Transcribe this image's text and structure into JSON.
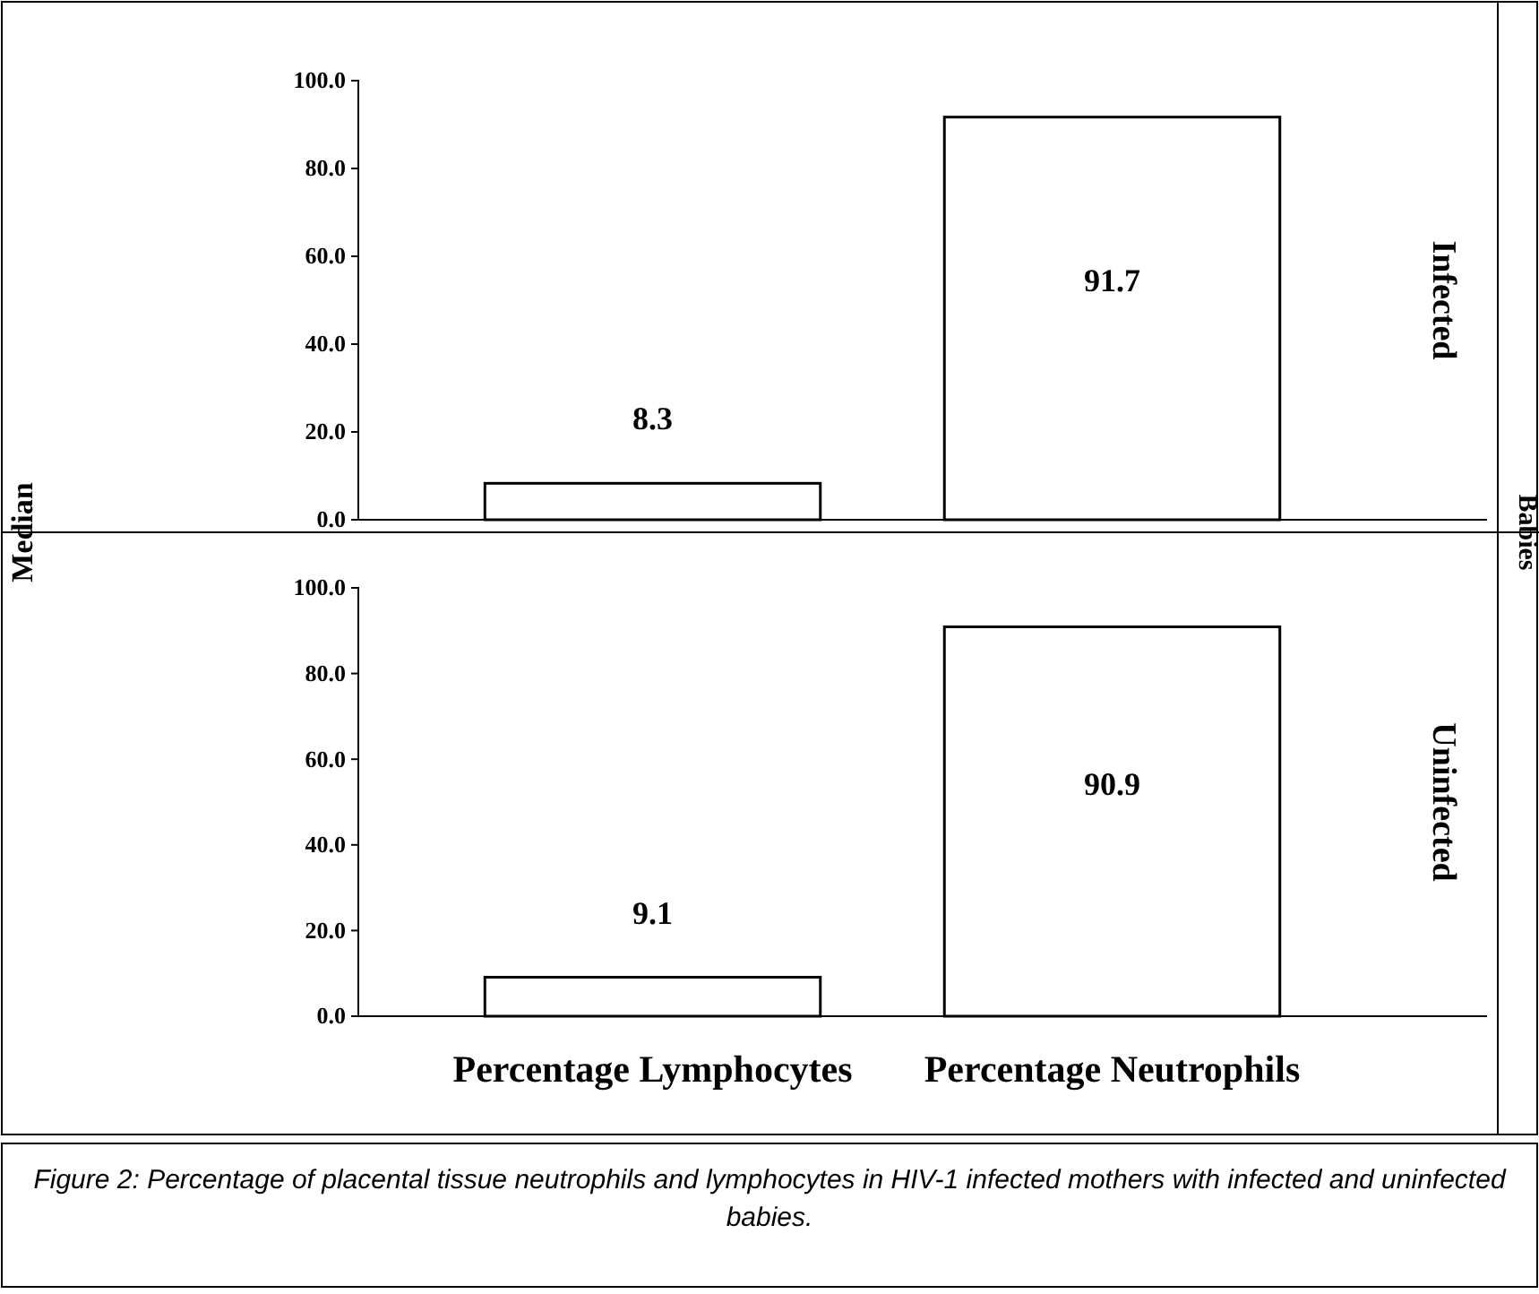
{
  "chart_data": [
    {
      "type": "bar",
      "title": "Infected",
      "ylabel": "Median",
      "annotations": [
        "Babies"
      ],
      "categories": [
        null,
        null
      ],
      "values": [
        8.3,
        91.7
      ],
      "color": "#ffffff",
      "ylim": [
        0,
        100
      ],
      "yticks": [
        {
          "value": 0,
          "label": "0.0"
        },
        {
          "value": 20,
          "label": "20.0"
        },
        {
          "value": 40,
          "label": "40.0"
        },
        {
          "value": 60,
          "label": "60.0"
        },
        {
          "value": 80,
          "label": "80.0"
        },
        {
          "value": 100,
          "label": "100.0"
        }
      ],
      "data_labels": true,
      "tick_labels": "y",
      "grid": false
    },
    {
      "type": "bar",
      "title": "Uninfected",
      "annotations": [
        "Figure 2: Percentage of placental tissue neutrophils and lymphocytes in HIV-1 infected mothers with infected and uninfected babies."
      ],
      "categories": [
        "Percentage Lymphocytes",
        "Percentage Neutrophils"
      ],
      "values": [
        9.1,
        90.9
      ],
      "color": "#ffffff",
      "ylim": [
        0,
        100
      ],
      "yticks": [
        {
          "value": 0,
          "label": "0.0"
        },
        {
          "value": 20,
          "label": "20.0"
        },
        {
          "value": 40,
          "label": "40.0"
        },
        {
          "value": 60,
          "label": "60.0"
        },
        {
          "value": 80,
          "label": "80.0"
        },
        {
          "value": 100,
          "label": "100.0"
        }
      ],
      "data_labels": true,
      "grid": false
    }
  ]
}
